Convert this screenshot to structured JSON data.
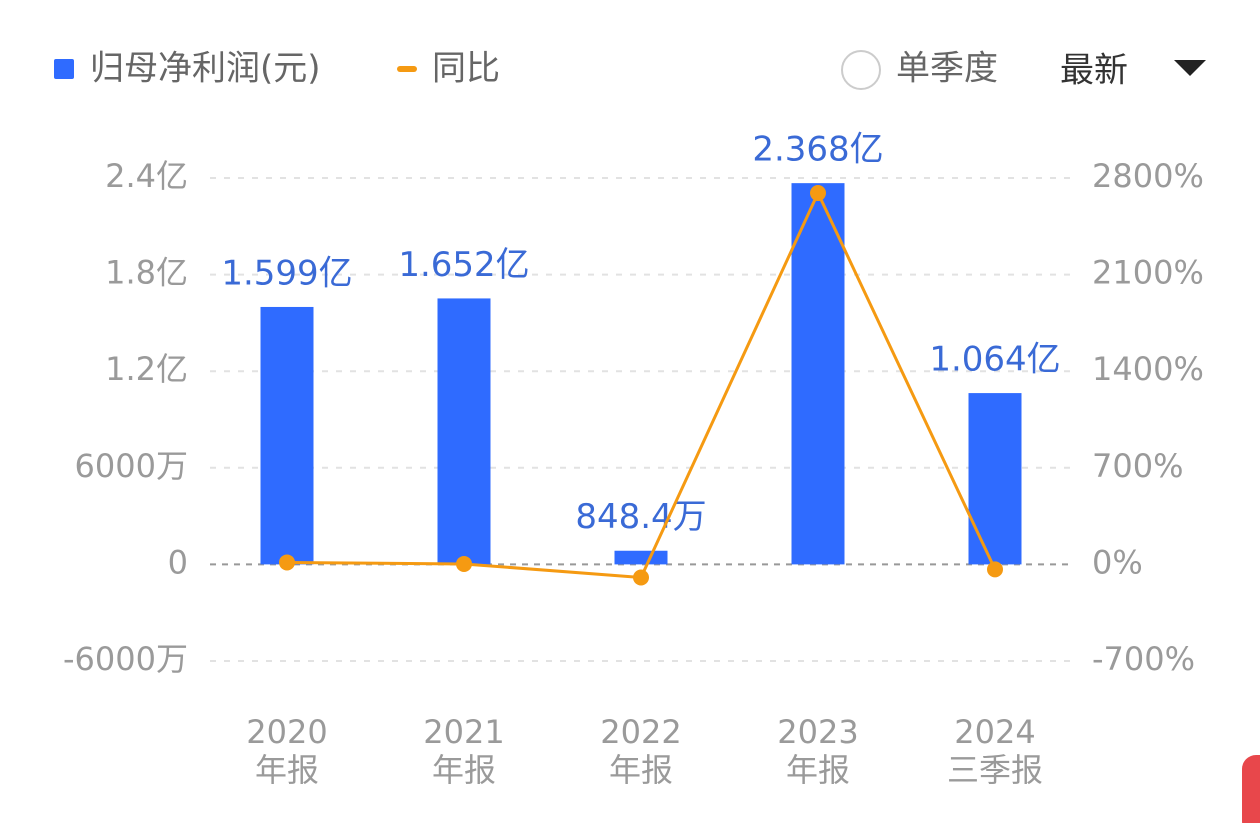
{
  "chart_data": {
    "type": "bar",
    "categories": [
      [
        "2020",
        "年报"
      ],
      [
        "2021",
        "年报"
      ],
      [
        "2022",
        "年报"
      ],
      [
        "2023",
        "年报"
      ],
      [
        "2024",
        "三季报"
      ]
    ],
    "series": [
      {
        "name": "归母净利润(元)",
        "type": "bar",
        "color": "#2f6bff",
        "values": [
          159900000,
          165200000,
          8484000,
          236800000,
          106400000
        ],
        "value_labels": [
          "1.599亿",
          "1.652亿",
          "848.4万",
          "2.368亿",
          "1.064亿"
        ]
      },
      {
        "name": "同比",
        "type": "line",
        "color": "#f59a12",
        "axis": "y2",
        "values": [
          14,
          3.3,
          -94.9,
          2691,
          -36
        ]
      }
    ],
    "ylim": [
      -60000000,
      240000000
    ],
    "yticks": [
      {
        "value": 240000000,
        "label": "2.4亿"
      },
      {
        "value": 180000000,
        "label": "1.8亿"
      },
      {
        "value": 120000000,
        "label": "1.2亿"
      },
      {
        "value": 60000000,
        "label": "6000万"
      },
      0,
      {
        "value": -60000000,
        "label": "-6000万"
      }
    ],
    "y2lim": [
      -700,
      2800
    ],
    "y2ticks": [
      {
        "value": 2800,
        "label": "2800%"
      },
      {
        "value": 2100,
        "label": "2100%"
      },
      {
        "value": 1400,
        "label": "1400%"
      },
      {
        "value": 700,
        "label": "700%"
      },
      {
        "value": 0,
        "label": "0%"
      },
      {
        "value": -700,
        "label": "-700%"
      }
    ],
    "grid": true
  },
  "controls": {
    "single_quarter": "单季度",
    "period": "最新"
  }
}
